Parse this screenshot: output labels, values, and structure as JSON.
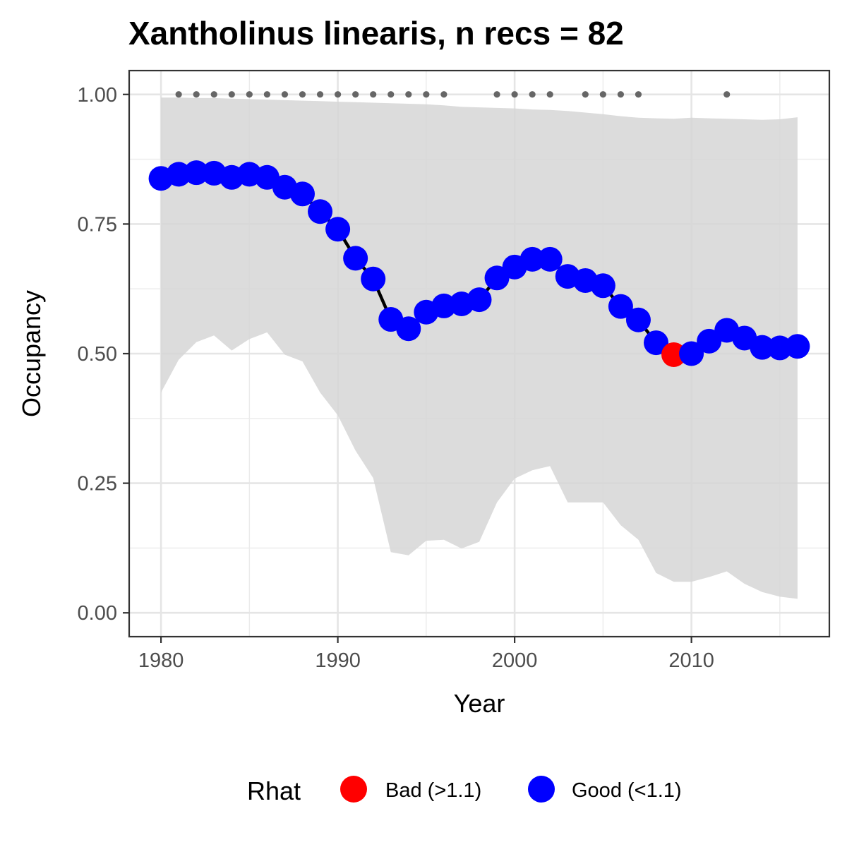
{
  "chart_data": {
    "type": "line",
    "title": "Xantholinus linearis, n recs = 82",
    "xlabel": "Year",
    "ylabel": "Occupancy",
    "xlim": [
      1978.2,
      2017.8
    ],
    "ylim": [
      -0.046,
      1.046
    ],
    "x_ticks": [
      1980,
      1990,
      2000,
      2010
    ],
    "x_tick_labels": [
      "1980",
      "1990",
      "2000",
      "2010"
    ],
    "y_ticks": [
      0,
      0.25,
      0.5,
      0.75,
      1.0
    ],
    "y_tick_labels": [
      "0.00",
      "0.25",
      "0.50",
      "0.75",
      "1.00"
    ],
    "grid": true,
    "legend_position": "bottom",
    "legend": {
      "title": "Rhat",
      "items": [
        {
          "key": "bad",
          "label": "Bad (>1.1)",
          "color": "#ff0000"
        },
        {
          "key": "good",
          "label": "Good (<1.1)",
          "color": "#0000ff"
        }
      ]
    },
    "colors": {
      "bad": "#ff0000",
      "good": "#0000ff",
      "line": "#000000",
      "ribbon": "#d6d6d6",
      "record_dots": "#666666"
    },
    "series": [
      {
        "x": [
          1980,
          1981,
          1982,
          1983,
          1984,
          1985,
          1986,
          1987,
          1988,
          1989,
          1990,
          1991,
          1992,
          1993,
          1994,
          1995,
          1996,
          1997,
          1998,
          1999,
          2000,
          2001,
          2002,
          2003,
          2004,
          2005,
          2006,
          2007,
          2008,
          2009,
          2010,
          2011,
          2012,
          2013,
          2014,
          2015,
          2016
        ],
        "y": [
          0.838,
          0.846,
          0.849,
          0.848,
          0.84,
          0.846,
          0.84,
          0.821,
          0.808,
          0.774,
          0.74,
          0.684,
          0.644,
          0.566,
          0.548,
          0.58,
          0.592,
          0.596,
          0.604,
          0.646,
          0.667,
          0.682,
          0.682,
          0.649,
          0.641,
          0.631,
          0.591,
          0.565,
          0.521,
          0.498,
          0.5,
          0.524,
          0.545,
          0.53,
          0.512,
          0.511,
          0.514
        ],
        "rhat": [
          "good",
          "good",
          "good",
          "good",
          "good",
          "good",
          "good",
          "good",
          "good",
          "good",
          "good",
          "good",
          "good",
          "good",
          "good",
          "good",
          "good",
          "good",
          "good",
          "good",
          "good",
          "good",
          "good",
          "good",
          "good",
          "good",
          "good",
          "good",
          "good",
          "bad",
          "good",
          "good",
          "good",
          "good",
          "good",
          "good",
          "good"
        ]
      }
    ],
    "ribbon": {
      "x": [
        1980,
        1981,
        1982,
        1983,
        1984,
        1985,
        1986,
        1987,
        1988,
        1989,
        1990,
        1991,
        1992,
        1993,
        1994,
        1995,
        1996,
        1997,
        1998,
        1999,
        2000,
        2001,
        2002,
        2003,
        2004,
        2005,
        2006,
        2007,
        2008,
        2009,
        2010,
        2011,
        2012,
        2013,
        2014,
        2015,
        2016
      ],
      "lower": [
        0.425,
        0.488,
        0.522,
        0.535,
        0.506,
        0.528,
        0.541,
        0.498,
        0.485,
        0.425,
        0.381,
        0.313,
        0.26,
        0.117,
        0.111,
        0.139,
        0.141,
        0.124,
        0.137,
        0.213,
        0.259,
        0.275,
        0.283,
        0.213,
        0.213,
        0.213,
        0.169,
        0.141,
        0.077,
        0.06,
        0.06,
        0.069,
        0.08,
        0.056,
        0.04,
        0.031,
        0.027
      ],
      "upper": [
        0.994,
        0.994,
        0.993,
        0.993,
        0.992,
        0.991,
        0.99,
        0.989,
        0.988,
        0.987,
        0.986,
        0.985,
        0.984,
        0.983,
        0.982,
        0.981,
        0.979,
        0.976,
        0.975,
        0.974,
        0.973,
        0.971,
        0.97,
        0.968,
        0.965,
        0.962,
        0.958,
        0.955,
        0.954,
        0.953,
        0.955,
        0.954,
        0.953,
        0.952,
        0.951,
        0.952,
        0.956
      ]
    },
    "record_years": [
      1981,
      1982,
      1983,
      1984,
      1985,
      1986,
      1987,
      1988,
      1989,
      1990,
      1991,
      1992,
      1993,
      1994,
      1995,
      1996,
      1999,
      2000,
      2001,
      2002,
      2004,
      2005,
      2006,
      2007,
      2012
    ],
    "record_level": 1.0
  }
}
